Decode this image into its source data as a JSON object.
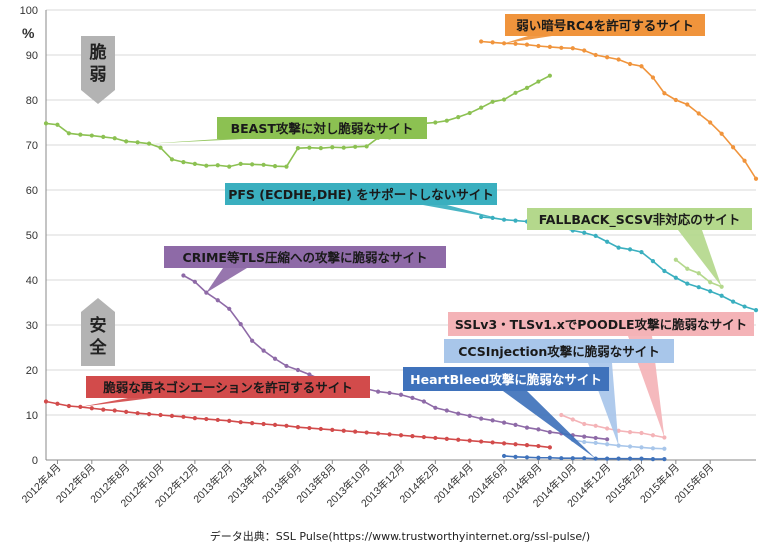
{
  "chart_data": {
    "type": "line",
    "ylabel": "%",
    "ylim": [
      0,
      100
    ],
    "yticks": [
      0,
      10,
      20,
      30,
      40,
      50,
      60,
      70,
      80,
      90,
      100
    ],
    "x_labels": [
      "2012年4月",
      "2012年6月",
      "2012年8月",
      "2012年10月",
      "2012年12月",
      "2013年2月",
      "2013年4月",
      "2013年6月",
      "2013年8月",
      "2013年10月",
      "2013年12月",
      "2014年2月",
      "2014年4月",
      "2014年6月",
      "2014年8月",
      "2014年10月",
      "2014年12月",
      "2015年2月",
      "2015年4月",
      "2015年6月"
    ],
    "source": "データ出典：SSL Pulse(https://www.trustworthyinternet.org/ssl-pulse/)",
    "side_labels": {
      "vulnerable": "脆弱",
      "secure": "安全"
    },
    "series": [
      {
        "name": "弱い暗号RC4を許可するサイト",
        "color": "#f0943c",
        "start": 38,
        "values": [
          93,
          92.8,
          92.6,
          92.5,
          92.3,
          92,
          91.8,
          91.6,
          91.5,
          91,
          90,
          89.5,
          89,
          88,
          87.5,
          85,
          81.5,
          80,
          79,
          77,
          75,
          72.5,
          69.5,
          66.5,
          62.5
        ]
      },
      {
        "name": "BEAST攻撃に対し脆弱なサイト",
        "color": "#8cc152",
        "start": 0,
        "values": [
          74.8,
          74.5,
          72.6,
          72.3,
          72.1,
          71.8,
          71.5,
          70.8,
          70.6,
          70.3,
          69.4,
          66.8,
          66.2,
          65.8,
          65.4,
          65.5,
          65.2,
          65.8,
          65.7,
          65.6,
          65.3,
          65.2,
          69.3,
          69.4,
          69.3,
          69.5,
          69.4,
          69.6,
          69.7,
          71.6,
          71.7,
          73.2,
          73.7,
          74.8,
          75.0,
          75.4,
          76.2,
          77.1,
          78.3,
          79.6,
          80.1,
          81.6,
          82.7,
          84.1,
          85.4
        ]
      },
      {
        "name": "PFS (ECDHE,DHE) をサポートしないサイト",
        "color": "#3aafbf",
        "start": 38,
        "values": [
          54,
          53.8,
          53.4,
          53.2,
          53,
          52.6,
          52.3,
          51.8,
          51,
          50.5,
          49.8,
          48.5,
          47.2,
          46.8,
          46.2,
          44.2,
          42,
          40.5,
          39.2,
          38.4,
          37.5,
          36.5,
          35.2,
          34.1,
          33.3
        ]
      },
      {
        "name": "FALLBACK_SCSV非対応のサイト",
        "color": "#b4d88c",
        "start": 55,
        "values": [
          44.5,
          42.5,
          41.5,
          39.5,
          38.5
        ]
      },
      {
        "name": "CRIME等TLS圧縮への攻撃に脆弱なサイト",
        "color": "#8e6aa7",
        "start": 12,
        "values": [
          41,
          39.6,
          37.2,
          35.5,
          33.6,
          30.2,
          26.5,
          24.3,
          22.5,
          20.9,
          20.0,
          19.0,
          17.9,
          17.5,
          17.0,
          16.6,
          15.8,
          15.2,
          14.9,
          14.5,
          13.8,
          13.0,
          11.6,
          11.0,
          10.3,
          9.8,
          9.2,
          8.8,
          8.3,
          7.8,
          7.2,
          6.8,
          6.2,
          5.9,
          5.5,
          5.2,
          4.9,
          4.6
        ]
      },
      {
        "name": "SSLv3・TLSv1.xでPOODLE攻撃に脆弱なサイト",
        "color": "#f4b3b7",
        "start": 45,
        "values": [
          10,
          9,
          8,
          7.6,
          7,
          6.5,
          6.2,
          6,
          5.5,
          5
        ]
      },
      {
        "name": "CCSInjection攻撃に脆弱なサイト",
        "color": "#a8c6ea",
        "start": 46,
        "values": [
          4.5,
          4,
          3.8,
          3.5,
          3.2,
          3,
          2.8,
          2.6,
          2.5
        ]
      },
      {
        "name": "HeartBleed攻撃に脆弱なサイト",
        "color": "#3f72bb",
        "start": 40,
        "values": [
          0.9,
          0.7,
          0.6,
          0.5,
          0.5,
          0.4,
          0.4,
          0.4,
          0.3,
          0.3,
          0.3,
          0.3,
          0.3,
          0.2,
          0.2
        ]
      },
      {
        "name": "脆弱な再ネゴシエーションを許可するサイト",
        "color": "#d24b4b",
        "start": 0,
        "values": [
          13,
          12.5,
          12,
          11.8,
          11.5,
          11.2,
          11,
          10.7,
          10.4,
          10.2,
          10,
          9.8,
          9.6,
          9.3,
          9.1,
          8.9,
          8.7,
          8.4,
          8.2,
          8,
          7.8,
          7.6,
          7.3,
          7.1,
          6.9,
          6.7,
          6.5,
          6.3,
          6.1,
          5.9,
          5.7,
          5.5,
          5.3,
          5.1,
          4.9,
          4.7,
          4.5,
          4.3,
          4.1,
          3.9,
          3.7,
          3.5,
          3.3,
          3.1,
          2.8
        ]
      }
    ],
    "callouts": [
      {
        "series": 0,
        "text": "弱い暗号RC4を許可するサイト"
      },
      {
        "series": 1,
        "text": "BEAST攻撃に対し脆弱なサイト"
      },
      {
        "series": 2,
        "text": "PFS (ECDHE,DHE) をサポートしないサイト"
      },
      {
        "series": 3,
        "text": "FALLBACK_SCSV非対応のサイト"
      },
      {
        "series": 4,
        "text": "CRIME等TLS圧縮への攻撃に脆弱なサイト"
      },
      {
        "series": 5,
        "text": "SSLv3・TLSv1.xでPOODLE攻撃に脆弱なサイト"
      },
      {
        "series": 6,
        "text": "CCSInjection攻撃に脆弱なサイト"
      },
      {
        "series": 7,
        "text": "HeartBleed攻撃に脆弱なサイト"
      },
      {
        "series": 8,
        "text": "脆弱な再ネゴシエーションを許可するサイト"
      }
    ]
  }
}
